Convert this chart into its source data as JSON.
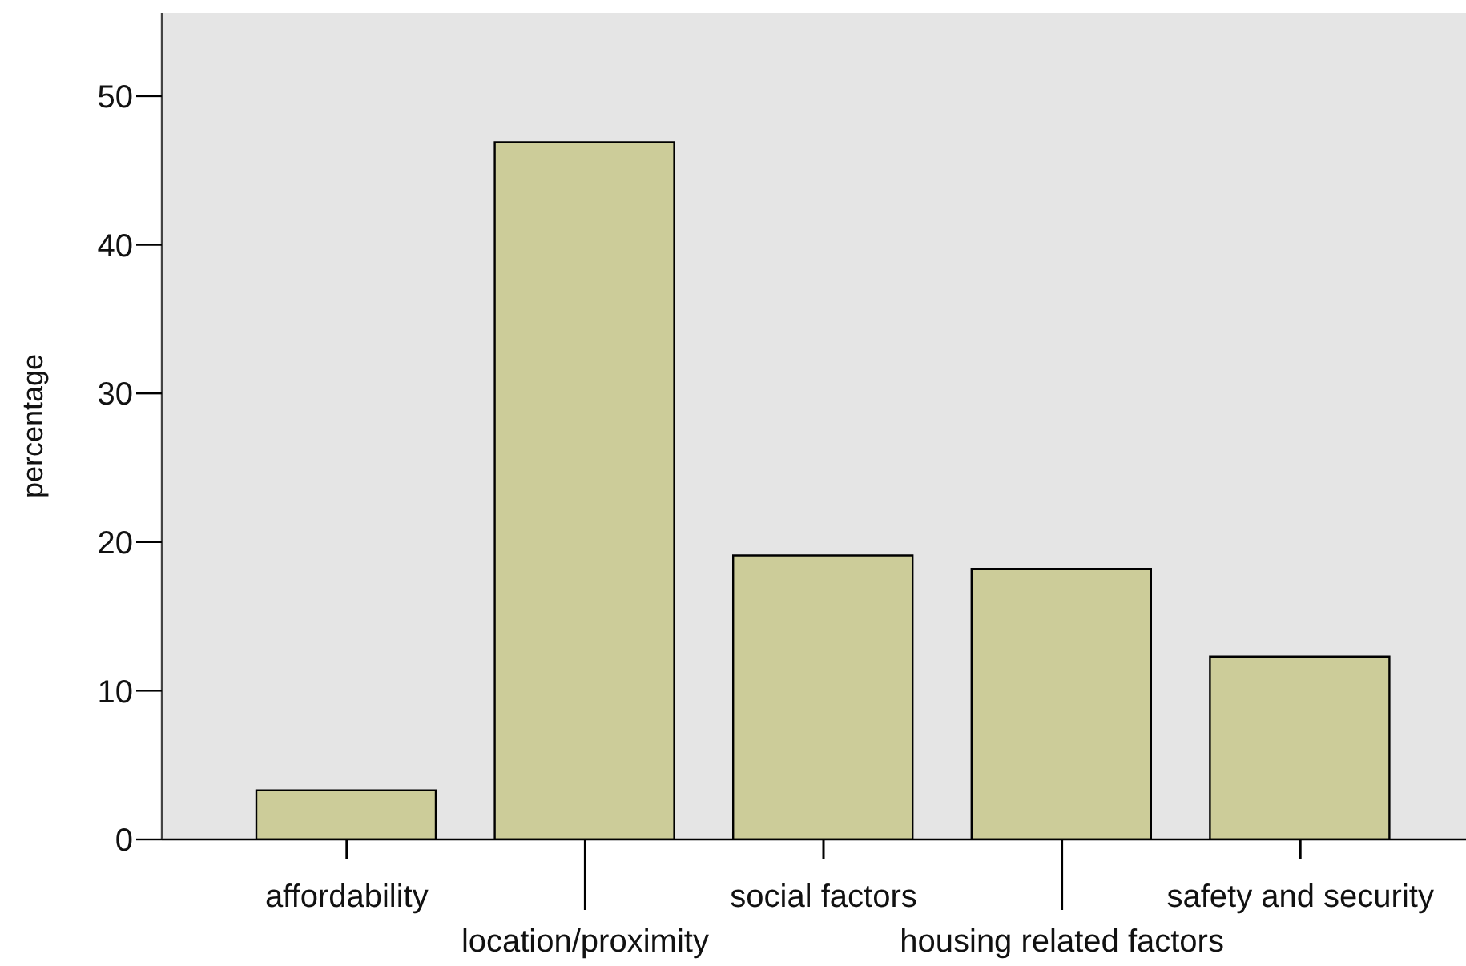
{
  "chart_data": {
    "type": "bar",
    "ylabel": "percentage",
    "categories": [
      "affordability",
      "location/proximity",
      "social factors",
      "housing related factors",
      "safety and security"
    ],
    "values": [
      3.3,
      46.9,
      19.1,
      18.2,
      12.3
    ],
    "color": "#cccc99",
    "ylim": [
      0,
      55.6
    ],
    "yticks": [
      0,
      10,
      20,
      30,
      40,
      50
    ],
    "grid": false
  }
}
